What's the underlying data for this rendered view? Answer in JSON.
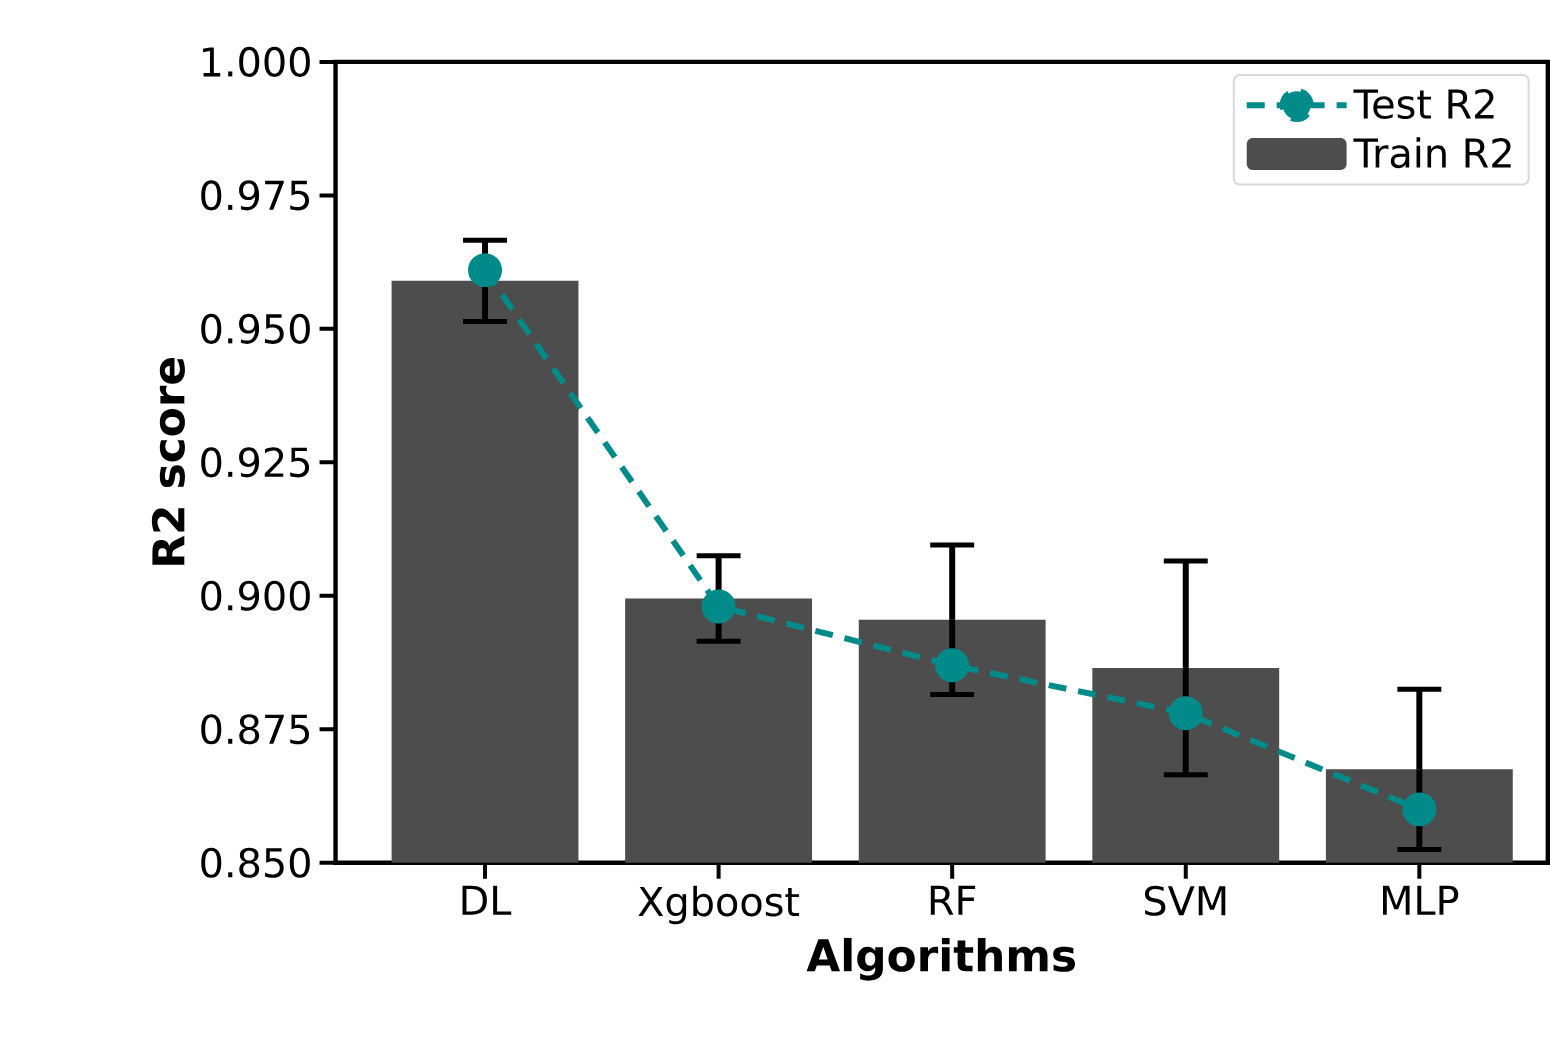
{
  "chart_data": {
    "type": "bar",
    "xlabel": "Algorithms",
    "ylabel": "R2 score",
    "categories": [
      "DL",
      "Xgboost",
      "RF",
      "SVM",
      "MLP"
    ],
    "series": [
      {
        "name": "Test R2",
        "type": "line",
        "color": "#008b8b",
        "marker": "circle",
        "line_style": "dashed",
        "values": [
          0.961,
          0.898,
          0.887,
          0.878,
          0.86
        ]
      },
      {
        "name": "Train R2",
        "color": "#4d4d4d",
        "values": [
          0.959,
          0.8995,
          0.8955,
          0.8865,
          0.8675
        ],
        "errors": [
          0.0076,
          0.008,
          0.014,
          0.02,
          0.015
        ]
      }
    ],
    "ylim": [
      0.85,
      1.0
    ],
    "yticks": [
      {
        "value": 0.85,
        "label": "0.850"
      },
      0.875,
      {
        "value": 0.9,
        "label": "0.900"
      },
      0.925,
      {
        "value": 0.95,
        "label": "0.950"
      },
      0.975,
      {
        "value": 1.0,
        "label": "1.000"
      }
    ],
    "legend": "top right"
  }
}
